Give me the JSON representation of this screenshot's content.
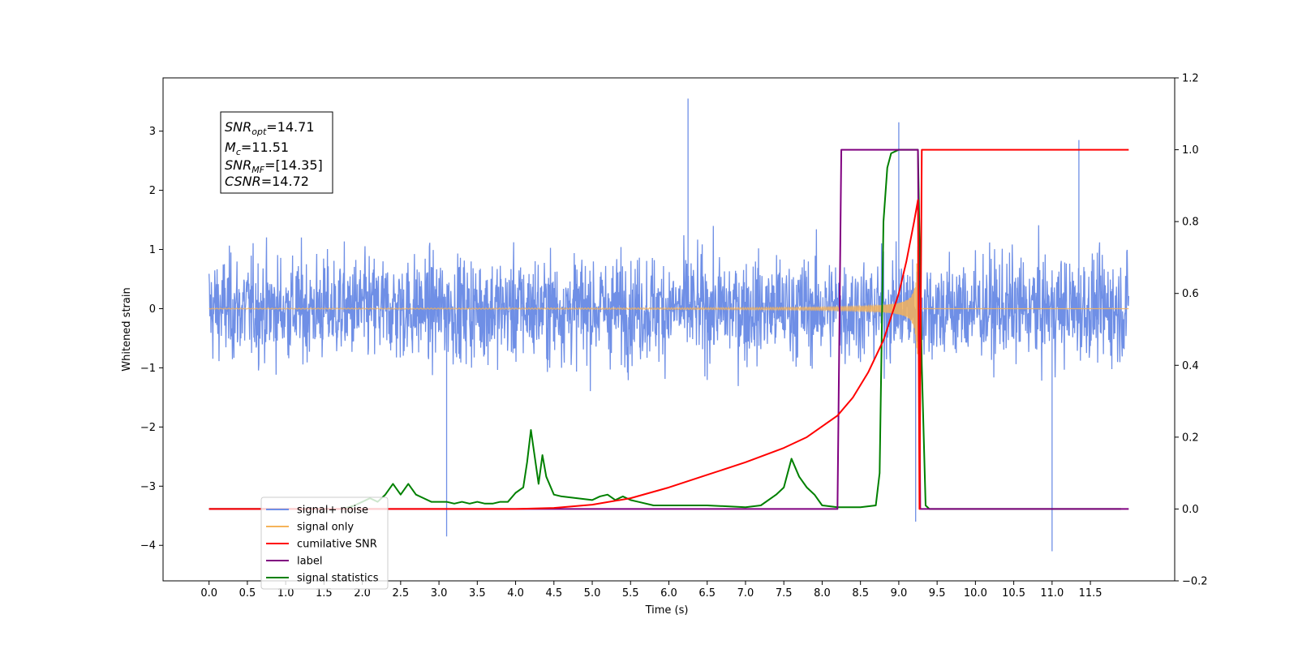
{
  "chart_data": {
    "type": "line",
    "title": "",
    "xlabel": "Time (s)",
    "ylabel": "Whitened strain",
    "y2label": "",
    "xlim": [
      -0.6,
      12.6
    ],
    "ylim": [
      -4.6,
      3.9
    ],
    "y2lim": [
      -0.2,
      1.2
    ],
    "x_ticks": [
      0.0,
      0.5,
      1.0,
      1.5,
      2.0,
      2.5,
      3.0,
      3.5,
      4.0,
      4.5,
      5.0,
      5.5,
      6.0,
      6.5,
      7.0,
      7.5,
      8.0,
      8.5,
      9.0,
      9.5,
      10.0,
      10.5,
      11.0,
      11.5
    ],
    "x_tick_labels": [
      "0.0",
      "0.5",
      "1.0",
      "1.5",
      "2.0",
      "2.5",
      "3.0",
      "3.5",
      "4.0",
      "4.5",
      "5.0",
      "5.5",
      "6.0",
      "6.5",
      "7.0",
      "7.5",
      "8.0",
      "8.5",
      "9.0",
      "9.5",
      "10.0",
      "10.5",
      "11.0",
      "11.5"
    ],
    "y_ticks": [
      3,
      2,
      1,
      0,
      -1,
      -2,
      -3,
      -4
    ],
    "y_tick_labels": [
      "3",
      "2",
      "1",
      "0",
      "−1",
      "−2",
      "−3",
      "−4"
    ],
    "y2_ticks": [
      1.2,
      1.0,
      0.8,
      0.6,
      0.4,
      0.2,
      0.0,
      -0.2
    ],
    "y2_tick_labels": [
      "1.2",
      "1.0",
      "0.8",
      "0.6",
      "0.4",
      "0.2",
      "0.0",
      "−0.2"
    ],
    "grid": false,
    "legend_position": "bottom-left",
    "annotation": {
      "lines": [
        {
          "sym": "SNR",
          "sub": "opt",
          "value": "=14.71"
        },
        {
          "sym": "M",
          "sub": "c",
          "value": "=11.51"
        },
        {
          "sym": "SNR",
          "sub": "MF",
          "value": "=[14.35]"
        },
        {
          "sym": "CSNR",
          "sub": "",
          "value": "=14.72"
        }
      ]
    },
    "series": [
      {
        "name": "signal+ noise",
        "axis": "left",
        "color": "#6f8fe6",
        "description_values": {
          "x_range": [
            0.0,
            12.0
          ],
          "typical_envelope": [
            -1.5,
            1.5
          ],
          "min": -4.1,
          "max": 3.55,
          "notable_peaks": [
            [
              6.25,
              3.55
            ],
            [
              9.0,
              3.15
            ],
            [
              11.35,
              2.85
            ],
            [
              3.1,
              -3.85
            ],
            [
              9.22,
              -3.6
            ],
            [
              11.0,
              -4.1
            ]
          ]
        }
      },
      {
        "name": "signal only",
        "axis": "left",
        "color": "#f5b35a",
        "description_values": {
          "x_range": [
            0.0,
            12.0
          ],
          "chirp_start": 5.0,
          "merger_time": 9.25,
          "max_amplitude": 1.0
        }
      },
      {
        "name": "cumilative SNR",
        "axis": "right",
        "color": "#ff0000",
        "x": [
          0.0,
          4.0,
          4.5,
          5.0,
          5.5,
          6.0,
          6.5,
          7.0,
          7.5,
          7.8,
          8.0,
          8.2,
          8.4,
          8.6,
          8.8,
          9.0,
          9.1,
          9.2,
          9.25,
          9.27,
          9.3,
          12.0
        ],
        "values": [
          0.0,
          0.0,
          0.003,
          0.012,
          0.03,
          0.06,
          0.095,
          0.13,
          0.17,
          0.2,
          0.23,
          0.26,
          0.31,
          0.38,
          0.47,
          0.6,
          0.69,
          0.8,
          0.86,
          0.0,
          1.0,
          1.0
        ]
      },
      {
        "name": "label",
        "axis": "right",
        "color": "#800080",
        "x": [
          0.0,
          8.2,
          8.25,
          9.25,
          9.28,
          12.0
        ],
        "values": [
          0.0,
          0.0,
          1.0,
          1.0,
          0.0,
          0.0
        ]
      },
      {
        "name": "signal statistics",
        "axis": "right",
        "color": "#008000",
        "x": [
          0.0,
          1.75,
          1.9,
          2.0,
          2.1,
          2.2,
          2.3,
          2.4,
          2.5,
          2.6,
          2.7,
          2.8,
          2.9,
          3.0,
          3.1,
          3.2,
          3.3,
          3.4,
          3.5,
          3.6,
          3.7,
          3.8,
          3.9,
          4.0,
          4.1,
          4.15,
          4.2,
          4.3,
          4.35,
          4.4,
          4.5,
          4.6,
          4.8,
          5.0,
          5.1,
          5.2,
          5.3,
          5.4,
          5.5,
          5.6,
          5.8,
          6.0,
          6.5,
          7.0,
          7.2,
          7.4,
          7.5,
          7.6,
          7.7,
          7.8,
          7.9,
          8.0,
          8.2,
          8.5,
          8.7,
          8.75,
          8.8,
          8.85,
          8.9,
          9.0,
          9.05,
          9.2,
          9.25,
          9.3,
          9.35,
          9.4,
          11.9
        ],
        "values": [
          0.0,
          0.0,
          0.01,
          0.02,
          0.03,
          0.02,
          0.04,
          0.07,
          0.04,
          0.07,
          0.04,
          0.03,
          0.02,
          0.02,
          0.02,
          0.015,
          0.02,
          0.015,
          0.02,
          0.015,
          0.015,
          0.02,
          0.02,
          0.045,
          0.06,
          0.13,
          0.22,
          0.07,
          0.15,
          0.09,
          0.04,
          0.035,
          0.03,
          0.025,
          0.035,
          0.04,
          0.025,
          0.035,
          0.025,
          0.02,
          0.01,
          0.01,
          0.01,
          0.005,
          0.01,
          0.04,
          0.06,
          0.14,
          0.09,
          0.06,
          0.04,
          0.01,
          0.005,
          0.005,
          0.01,
          0.1,
          0.8,
          0.95,
          0.99,
          1.0,
          1.0,
          1.0,
          1.0,
          0.4,
          0.01,
          0.0,
          0.0
        ]
      }
    ]
  }
}
